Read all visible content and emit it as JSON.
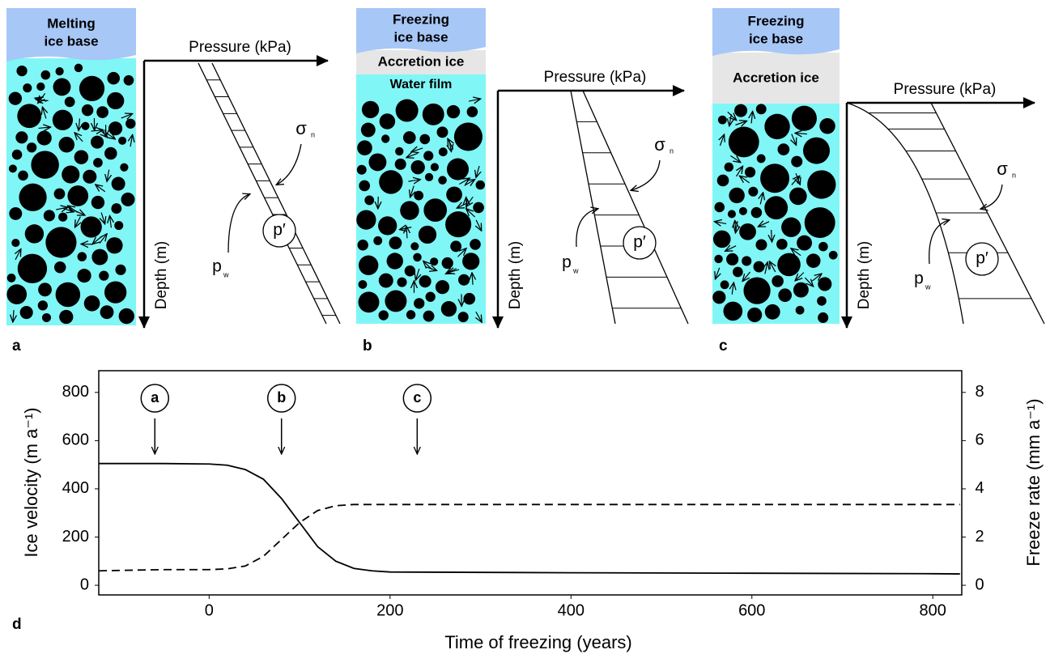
{
  "panels": [
    {
      "label": "a",
      "ice_base": [
        "Melting",
        "ice base"
      ],
      "pressure": "Pressure (kPa)",
      "depth": "Depth (m)",
      "sigma": "σ",
      "sigma_sub": "n",
      "pw": "p",
      "pw_sub": "w",
      "p_eff": "p′"
    },
    {
      "label": "b",
      "ice_base": [
        "Freezing",
        "ice base"
      ],
      "accretion": "Accretion ice",
      "water_film": "Water film",
      "pressure": "Pressure (kPa)",
      "depth": "Depth (m)",
      "sigma": "σ",
      "sigma_sub": "n",
      "pw": "p",
      "pw_sub": "w",
      "p_eff": "p′"
    },
    {
      "label": "c",
      "ice_base": [
        "Freezing",
        "ice base"
      ],
      "accretion": "Accretion ice",
      "pressure": "Pressure (kPa)",
      "depth": "Depth (m)",
      "sigma": "σ",
      "sigma_sub": "n",
      "pw": "p",
      "pw_sub": "w",
      "p_eff": "p′"
    }
  ],
  "chart_data": {
    "type": "line",
    "panel_label": "d",
    "xlabel": "Time of freezing (years)",
    "ylabel": "Ice velocity (m a⁻¹)",
    "y2label": "Freeze rate (mm a⁻¹)",
    "x": [
      -122,
      -50,
      0,
      20,
      40,
      60,
      80,
      100,
      120,
      140,
      160,
      180,
      200,
      400,
      600,
      800,
      830
    ],
    "series": [
      {
        "color": "#000000",
        "dash": false,
        "values": [
          505,
          505,
          503,
          498,
          480,
          440,
          360,
          260,
          160,
          100,
          70,
          60,
          55,
          52,
          50,
          48,
          47
        ]
      },
      {
        "color": "#000000",
        "dash": true,
        "axis": "y2",
        "values": [
          0.6,
          0.65,
          0.65,
          0.68,
          0.8,
          1.2,
          1.9,
          2.6,
          3.1,
          3.3,
          3.35,
          3.35,
          3.35,
          3.35,
          3.35,
          3.35,
          3.35
        ]
      }
    ],
    "xlim": [
      -122,
      832
    ],
    "xticks": [
      0,
      200,
      400,
      600,
      800
    ],
    "ylim": [
      -40,
      890
    ],
    "yticks": [
      0,
      200,
      400,
      600,
      800
    ],
    "y2lim": [
      -0.4,
      8.9
    ],
    "y2ticks": [
      0,
      2,
      4,
      6,
      8
    ],
    "annotations": [
      {
        "label": "a",
        "x": -60
      },
      {
        "label": "b",
        "x": 80
      },
      {
        "label": "c",
        "x": 230
      }
    ]
  }
}
